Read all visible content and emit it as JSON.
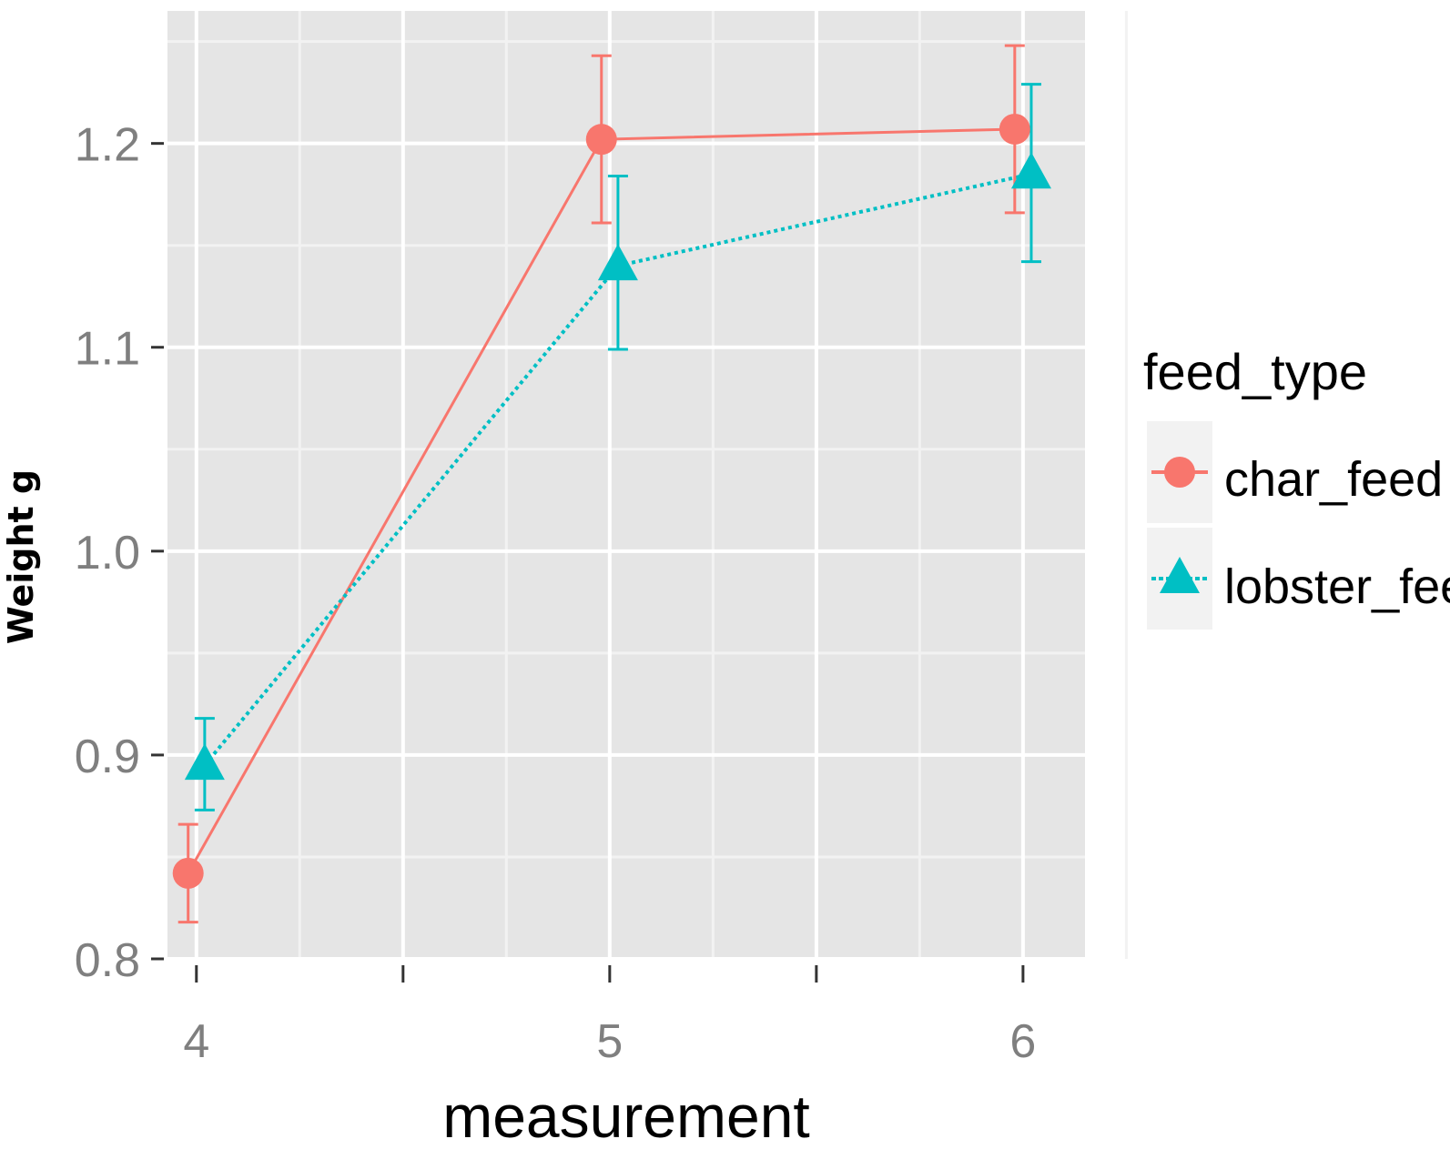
{
  "chart_data": {
    "type": "line",
    "xlabel": "measurement",
    "ylabel": "Weight g",
    "x": [
      4,
      5,
      6
    ],
    "x_ticks": [
      "4",
      "5",
      "6"
    ],
    "xlim": [
      3.93,
      6.15
    ],
    "y_ticks": [
      "0.8",
      "0.9",
      "1.0",
      "1.1",
      "1.2"
    ],
    "ylim": [
      0.8,
      1.265
    ],
    "grid": true,
    "error_bars": true,
    "legend_title": "feed_type",
    "legend_position": "right",
    "series": [
      {
        "name": "char_feed",
        "color": "#F8766D",
        "marker": "circle",
        "line_style": "solid",
        "x": [
          3.98,
          4.98,
          5.98
        ],
        "values": [
          0.842,
          1.202,
          1.207
        ],
        "error_low": [
          0.818,
          1.161,
          1.166
        ],
        "error_high": [
          0.866,
          1.243,
          1.248
        ]
      },
      {
        "name": "lobster_feed",
        "color": "#00BFC4",
        "marker": "triangle",
        "line_style": "dotted",
        "x": [
          4.02,
          5.02,
          6.02
        ],
        "values": [
          0.895,
          1.14,
          1.185
        ],
        "error_low": [
          0.873,
          1.099,
          1.142
        ],
        "error_high": [
          0.918,
          1.184,
          1.229
        ]
      }
    ]
  }
}
